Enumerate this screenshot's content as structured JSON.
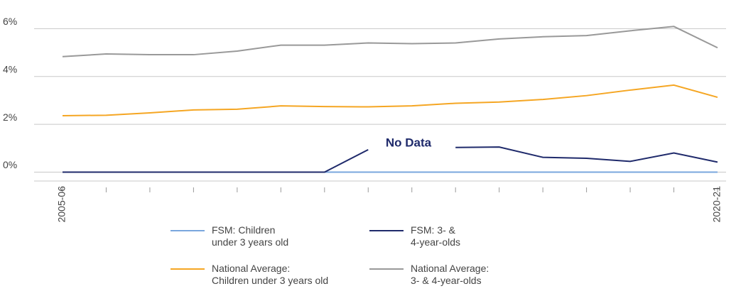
{
  "chart_data": {
    "type": "line",
    "categories": [
      "2005-06",
      null,
      null,
      null,
      null,
      null,
      null,
      null,
      null,
      null,
      null,
      null,
      null,
      null,
      null,
      "2020-21"
    ],
    "series": [
      {
        "name": "FSM: Children\nunder 3 years old",
        "color": "#7aa7de",
        "values": [
          0,
          0,
          0,
          0,
          0,
          0,
          0,
          0,
          0,
          0,
          0,
          0,
          0,
          0,
          0,
          0
        ]
      },
      {
        "name": "FSM: 3- &\n4-year-olds",
        "color": "#1f2a6b",
        "values": [
          0,
          0,
          0,
          0,
          0,
          0,
          0,
          0.94,
          null,
          1.03,
          1.05,
          0.62,
          0.58,
          0.45,
          0.8,
          0.42
        ]
      },
      {
        "name": "National Average:\nChildren under 3 years old",
        "color": "#f5a623",
        "values": [
          2.36,
          2.38,
          2.48,
          2.6,
          2.63,
          2.77,
          2.74,
          2.73,
          2.77,
          2.88,
          2.93,
          3.04,
          3.2,
          3.43,
          3.64,
          3.13
        ]
      },
      {
        "name": "National Average:\n3- & 4-year-olds",
        "color": "#999999",
        "values": [
          4.83,
          4.94,
          4.91,
          4.91,
          5.06,
          5.31,
          5.31,
          5.4,
          5.37,
          5.4,
          5.57,
          5.66,
          5.71,
          5.91,
          6.09,
          5.2
        ]
      }
    ],
    "annotation": "No Data",
    "ylim": [
      -0.4,
      6.9
    ],
    "yticks": [
      {
        "value": 0,
        "label": "0%"
      },
      {
        "value": 2,
        "label": "2%"
      },
      {
        "value": 4,
        "label": "4%"
      },
      {
        "value": 6,
        "label": "6%"
      }
    ],
    "grid": true
  }
}
